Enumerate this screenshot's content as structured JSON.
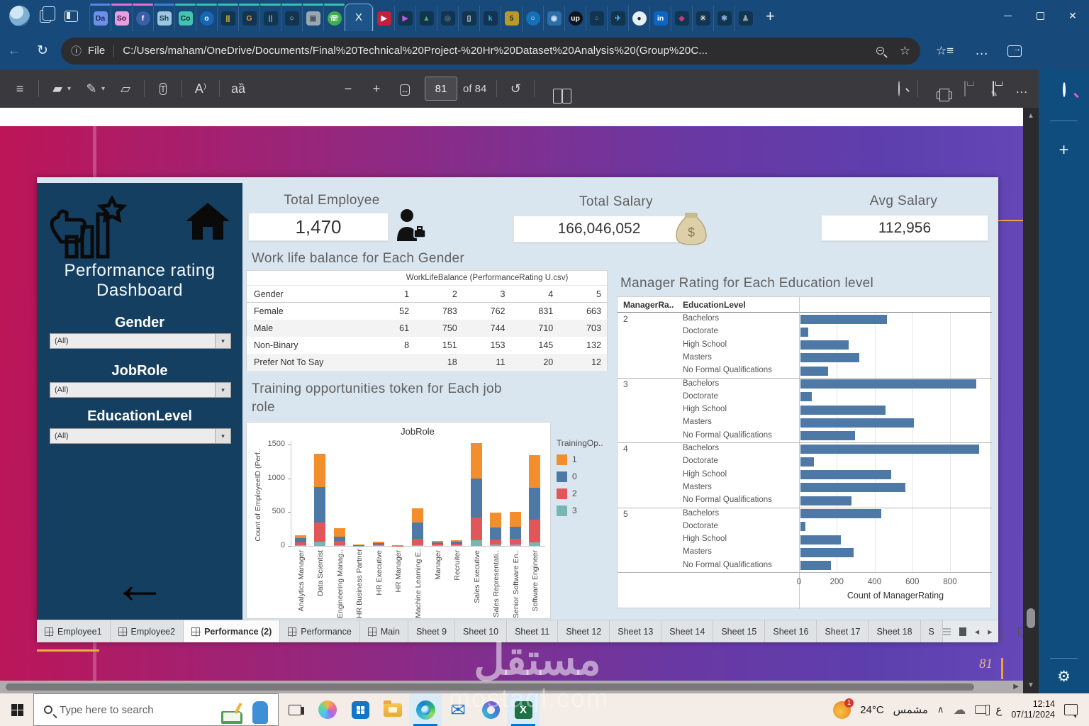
{
  "browser": {
    "window_controls": {
      "minimize": "minimize",
      "maximize": "maximize",
      "close": "✕"
    },
    "new_tab_glyph": "+",
    "tabs_before": [
      {
        "glyph": "Da",
        "bg": "#6d8fea",
        "fg": "#152a52",
        "line": "#5b83e8"
      },
      {
        "glyph": "So",
        "bg": "#e79fe2",
        "fg": "#471043",
        "line": "#e272d2"
      },
      {
        "glyph": "f",
        "bg": "#3a5ea8",
        "fg": "#ffffff",
        "line": "#e272d2",
        "round": true
      },
      {
        "glyph": "Sh",
        "bg": "#9fc6e0",
        "fg": "#173a54",
        "line": "#3f7fd6"
      },
      {
        "glyph": "Co",
        "bg": "#43c3b0",
        "fg": "#0c332d",
        "line": "#3cbfab"
      },
      {
        "glyph": "o",
        "bg": "#1467b4",
        "fg": "#ffffff",
        "line": "#3cbfab",
        "round": true
      },
      {
        "glyph": "||",
        "bg": "#12344e",
        "fg": "#e8c93e",
        "line": "#3cbfab"
      },
      {
        "glyph": "G",
        "bg": "#12344e",
        "fg": "#e8963e",
        "line": "#3cbfab"
      },
      {
        "glyph": "||",
        "bg": "#12344e",
        "fg": "#4ec9b8",
        "line": "#3cbfab"
      },
      {
        "glyph": "○",
        "bg": "#12344e",
        "fg": "#c8d4de",
        "line": "#3cbfab"
      },
      {
        "glyph": "▣",
        "bg": "#9aa7b2",
        "fg": "#4a5560",
        "line": "#3cbfab"
      },
      {
        "glyph": "☏",
        "bg": "#3fae4e",
        "fg": "#ffffff",
        "line": "#3cbfab",
        "round": true
      }
    ],
    "active_tab": {
      "glyph": "X"
    },
    "tabs_after": [
      {
        "glyph": "▶",
        "bg": "#c2203c",
        "fg": "#ffffff"
      },
      {
        "glyph": "▶",
        "bg": "#12344e",
        "fg": "#b65fd4"
      },
      {
        "glyph": "▲",
        "bg": "#12344e",
        "fg": "#58b064"
      },
      {
        "glyph": "◎",
        "bg": "#12344e",
        "fg": "#5e7286"
      },
      {
        "glyph": "▯",
        "bg": "#12344e",
        "fg": "#d8dde2"
      },
      {
        "glyph": "k",
        "bg": "#12344e",
        "fg": "#35b5e8"
      },
      {
        "glyph": "5",
        "bg": "#b89a2a",
        "fg": "#23282e"
      },
      {
        "glyph": "○",
        "bg": "#1470b8",
        "fg": "#e8f4fc",
        "round": true
      },
      {
        "glyph": "◉",
        "bg": "#2d6da8",
        "fg": "#cfe4f4"
      },
      {
        "glyph": "up",
        "bg": "#10141c",
        "fg": "#f4f6f8",
        "round": true
      },
      {
        "glyph": "○",
        "bg": "#12344e",
        "fg": "#4a9ad8"
      },
      {
        "glyph": "✈",
        "bg": "#12344e",
        "fg": "#58aee8"
      },
      {
        "glyph": "●",
        "bg": "#e8eef4",
        "fg": "#23292f",
        "round": true
      },
      {
        "glyph": "in",
        "bg": "#0a66c2",
        "fg": "#ffffff"
      },
      {
        "glyph": "◆",
        "bg": "#12344e",
        "fg": "#c23b80"
      },
      {
        "glyph": "✳",
        "bg": "#12344e",
        "fg": "#cdd6de"
      },
      {
        "glyph": "✱",
        "bg": "#12344e",
        "fg": "#7fb0d8"
      },
      {
        "glyph": "♟",
        "bg": "#12344e",
        "fg": "#9aa7b2"
      }
    ],
    "address": {
      "prefix": "File",
      "url": "C:/Users/maham/OneDrive/Documents/Final%20Technical%20Project-%20Hr%20Dataset%20Analysis%20(Group%20C..."
    }
  },
  "pdf": {
    "page": "81",
    "of_label": "of 84",
    "slide_page_number": "81"
  },
  "dashboard": {
    "sidebar": {
      "title_line1": "Performance rating",
      "title_line2": "Dashboard",
      "filters": [
        {
          "label": "Gender",
          "value": "(All)"
        },
        {
          "label": "JobRole",
          "value": "(All)"
        },
        {
          "label": "EducationLevel",
          "value": "(All)"
        }
      ],
      "back_arrow": "←"
    },
    "kpis": [
      {
        "label": "Total Employee",
        "value": "1,470"
      },
      {
        "label": "Total Salary",
        "value": "166,046,052"
      },
      {
        "label": "Avg Salary",
        "value": "112,956"
      }
    ],
    "worklife": {
      "title": "Work life balance for Each Gender",
      "band_header": "WorkLifeBalance (PerformanceRating U.csv)",
      "row_header": "Gender",
      "columns": [
        "1",
        "2",
        "3",
        "4",
        "5"
      ],
      "rows": [
        [
          "Female",
          "52",
          "783",
          "762",
          "831",
          "663"
        ],
        [
          "Male",
          "61",
          "750",
          "744",
          "710",
          "703"
        ],
        [
          "Non-Binary",
          "8",
          "151",
          "153",
          "145",
          "132"
        ],
        [
          "Prefer Not To Say",
          "",
          "18",
          "11",
          "20",
          "12"
        ]
      ]
    },
    "sheet_tabs": {
      "tabs": [
        {
          "label": "Employee1",
          "icon": true
        },
        {
          "label": "Employee2",
          "icon": true
        },
        {
          "label": "Performance (2)",
          "icon": true,
          "active": true
        },
        {
          "label": "Performance",
          "icon": true
        },
        {
          "label": "Main",
          "icon": true
        },
        {
          "label": "Sheet 9"
        },
        {
          "label": "Sheet 10"
        },
        {
          "label": "Sheet 11"
        },
        {
          "label": "Sheet 12"
        },
        {
          "label": "Sheet 13"
        },
        {
          "label": "Sheet 14"
        },
        {
          "label": "Sheet 15"
        },
        {
          "label": "Sheet 16"
        },
        {
          "label": "Sheet 17"
        },
        {
          "label": "Sheet 18"
        },
        {
          "label": "S"
        }
      ]
    }
  },
  "chart_data": [
    {
      "id": "training",
      "type": "bar",
      "stacked": true,
      "title": "Training opportunities token for Each job role",
      "title_line1": "Training opportunities token for Each job",
      "title_line2": "role",
      "inner_title": "JobRole",
      "ylabel": "Count of EmployeeID (Perf..",
      "yticks": [
        0,
        500,
        1000,
        1500
      ],
      "ylim": [
        0,
        1550
      ],
      "legend_title": "TrainingOp..",
      "legend_position": "right",
      "legend_order": [
        "1",
        "0",
        "2",
        "3"
      ],
      "categories": [
        "Analytics Manager",
        "Data Scientist",
        "Engineering Manag..",
        "HR Business Partner",
        "HR Executive",
        "HR Manager",
        "Machine Learning E..",
        "Manager",
        "Recruiter",
        "Sales Executive",
        "Sales Representati..",
        "Senior Software En..",
        "Software Engineer"
      ],
      "series": [
        {
          "name": "3",
          "color": "#76b7b2",
          "values": [
            10,
            60,
            15,
            3,
            8,
            3,
            15,
            8,
            8,
            80,
            25,
            25,
            55
          ]
        },
        {
          "name": "2",
          "color": "#e15759",
          "values": [
            45,
            290,
            60,
            7,
            18,
            2,
            85,
            25,
            25,
            340,
            65,
            75,
            330
          ]
        },
        {
          "name": "0",
          "color": "#4e79a7",
          "values": [
            55,
            520,
            60,
            5,
            20,
            6,
            250,
            22,
            28,
            570,
            180,
            180,
            475
          ]
        },
        {
          "name": "1",
          "color": "#f28e2b",
          "values": [
            50,
            490,
            125,
            5,
            14,
            4,
            210,
            15,
            19,
            530,
            220,
            220,
            480
          ]
        }
      ]
    },
    {
      "id": "manager",
      "type": "bar",
      "orientation": "horizontal",
      "title": "Manager Rating for Each Education level",
      "col1_header": "ManagerRa..",
      "col2_header": "EducationLevel",
      "xlabel": "Count of ManagerRating",
      "xticks": [
        0,
        200,
        400,
        600,
        800
      ],
      "xlim": [
        0,
        960
      ],
      "bar_color": "#4e79a7",
      "groups": [
        {
          "rating": "2",
          "rows": [
            [
              "Bachelors",
              460
            ],
            [
              "Doctorate",
              40
            ],
            [
              "High School",
              255
            ],
            [
              "Masters",
              310
            ],
            [
              "No Formal Qualifications",
              145
            ]
          ]
        },
        {
          "rating": "3",
          "rows": [
            [
              "Bachelors",
              930
            ],
            [
              "Doctorate",
              60
            ],
            [
              "High School",
              450
            ],
            [
              "Masters",
              600
            ],
            [
              "No Formal Qualifications",
              290
            ]
          ]
        },
        {
          "rating": "4",
          "rows": [
            [
              "Bachelors",
              945
            ],
            [
              "Doctorate",
              70
            ],
            [
              "High School",
              480
            ],
            [
              "Masters",
              555
            ],
            [
              "No Formal Qualifications",
              270
            ]
          ]
        },
        {
          "rating": "5",
          "rows": [
            [
              "Bachelors",
              430
            ],
            [
              "Doctorate",
              25
            ],
            [
              "High School",
              215
            ],
            [
              "Masters",
              280
            ],
            [
              "No Formal Qualifications",
              160
            ]
          ]
        }
      ]
    }
  ],
  "taskbar": {
    "search_placeholder": "Type here to search",
    "weather_temp": "24°C",
    "weather_condition": "مشمس",
    "weather_badge": "1",
    "language": "ع",
    "time": "12:14",
    "date": "07/11/2024"
  },
  "watermark": {
    "line1": "مستقل",
    "line2": "mostaql.com"
  }
}
